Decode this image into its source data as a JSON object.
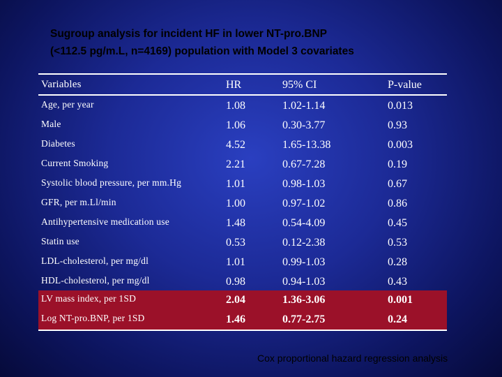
{
  "title": {
    "line1": "Sugroup analysis for incident HF in lower NT-pro.BNP",
    "line2": "(<112.5 pg/m.L, n=4169) population with Model 3 covariates"
  },
  "table": {
    "headers": {
      "variable": "Variables",
      "hr": "HR",
      "ci": "95% CI",
      "p": "P-value"
    },
    "rows": [
      {
        "variable": "Age,",
        "unit": " per year",
        "hr": "1.08",
        "ci": "1.02-1.14",
        "p": "0.013",
        "highlight": false
      },
      {
        "variable": "Male",
        "unit": "",
        "hr": "1.06",
        "ci": "0.30-3.77",
        "p": "0.93",
        "highlight": false
      },
      {
        "variable": "Diabetes",
        "unit": "",
        "hr": "4.52",
        "ci": "1.65-13.38",
        "p": "0.003",
        "highlight": false
      },
      {
        "variable": "Current Smoking",
        "unit": "",
        "hr": "2.21",
        "ci": "0.67-7.28",
        "p": "0.19",
        "highlight": false
      },
      {
        "variable": "Systolic blood pressure,",
        "unit": " per mm.Hg",
        "hr": "1.01",
        "ci": "0.98-1.03",
        "p": "0.67",
        "highlight": false
      },
      {
        "variable": "GFR,",
        "unit": " per m.Ll/min",
        "hr": "1.00",
        "ci": "0.97-1.02",
        "p": "0.86",
        "highlight": false
      },
      {
        "variable": "Antihypertensive medication use",
        "unit": "",
        "hr": "1.48",
        "ci": "0.54-4.09",
        "p": "0.45",
        "highlight": false
      },
      {
        "variable": "Statin use",
        "unit": "",
        "hr": "0.53",
        "ci": "0.12-2.38",
        "p": "0.53",
        "highlight": false
      },
      {
        "variable": "LDL-cholesterol,",
        "unit": " per mg/dl",
        "hr": "1.01",
        "ci": "0.99-1.03",
        "p": "0.28",
        "highlight": false
      },
      {
        "variable": "HDL-cholesterol,",
        "unit": " per mg/dl",
        "hr": "0.98",
        "ci": "0.94-1.03",
        "p": "0.43",
        "highlight": false
      },
      {
        "variable": "LV mass index,",
        "unit": " per 1SD",
        "hr": "2.04",
        "ci": "1.36-3.06",
        "p": "0.001",
        "highlight": true
      },
      {
        "variable": "Log NT-pro.BNP,",
        "unit": " per 1SD",
        "hr": "1.46",
        "ci": "0.77-2.75",
        "p": "0.24",
        "highlight": true
      }
    ]
  },
  "footnote": "Cox proportional hazard regression analysis",
  "colors": {
    "background": "#1c2a96",
    "highlight_row": "#9b1129"
  }
}
